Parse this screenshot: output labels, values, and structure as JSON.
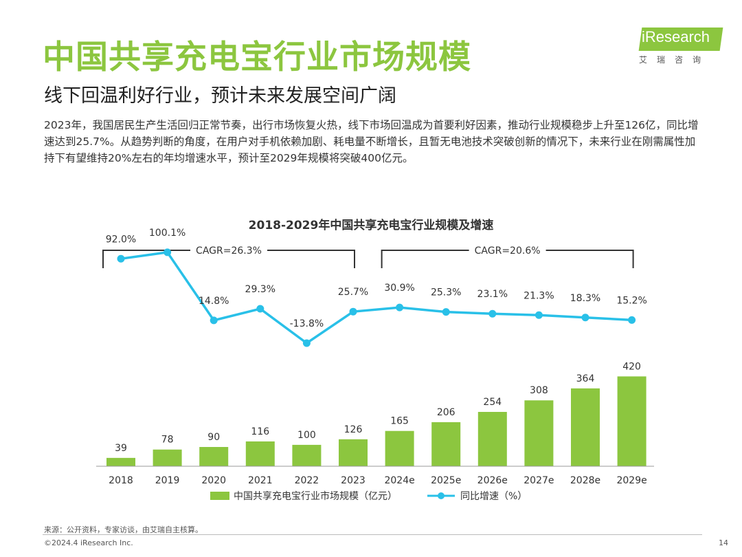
{
  "header": {
    "title": "中国共享充电宝行业市场规模",
    "subtitle": "线下回温利好行业，预计未来发展空间广阔",
    "description": "2023年，我国居民生产生活回归正常节奏，出行市场恢复火热，线下市场回温成为首要利好因素，推动行业规模稳步上升至126亿，同比增速达到25.7%。从趋势判断的角度，在用户对手机依赖加剧、耗电量不断增长，且暂无电池技术突破创新的情况下，未来行业在刚需属性加持下有望维持20%左右的年均增速水平，预计至2029年规模将突破400亿元。"
  },
  "logo": {
    "text": "iResearch",
    "sub": "艾瑞咨询"
  },
  "chart_data": {
    "type": "bar+line",
    "title": "2018-2029年中国共享充电宝行业规模及增速",
    "categories": [
      "2018",
      "2019",
      "2020",
      "2021",
      "2022",
      "2023",
      "2024e",
      "2025e",
      "2026e",
      "2027e",
      "2028e",
      "2029e"
    ],
    "series": [
      {
        "name": "中国共享充电宝行业市场规模（亿元）",
        "type": "bar",
        "values": [
          39,
          78,
          90,
          116,
          100,
          126,
          165,
          206,
          254,
          308,
          364,
          420
        ],
        "labels": [
          "39",
          "78",
          "90",
          "116",
          "100",
          "126",
          "165",
          "206",
          "254",
          "308",
          "364",
          "420"
        ],
        "color": "#8cc63f"
      },
      {
        "name": "同比增速（%）",
        "type": "line",
        "values": [
          92.0,
          100.1,
          14.8,
          29.3,
          -13.8,
          25.7,
          30.9,
          25.3,
          23.1,
          21.3,
          18.3,
          15.2
        ],
        "labels": [
          "92.0%",
          "100.1%",
          "14.8%",
          "29.3%",
          "-13.8%",
          "25.7%",
          "30.9%",
          "25.3%",
          "23.1%",
          "21.3%",
          "18.3%",
          "15.2%"
        ],
        "color": "#29c0e8"
      }
    ],
    "annotations": [
      {
        "text": "CAGR=26.3%",
        "from": "2018",
        "to": "2023"
      },
      {
        "text": "CAGR=20.6%",
        "from": "2024e",
        "to": "2029e"
      }
    ],
    "legend_position": "bottom"
  },
  "footer": {
    "source": "来源：公开资料，专家访谈，由艾瑞自主核算。",
    "copyright": "©2024.4 iResearch Inc.",
    "page": "14"
  }
}
